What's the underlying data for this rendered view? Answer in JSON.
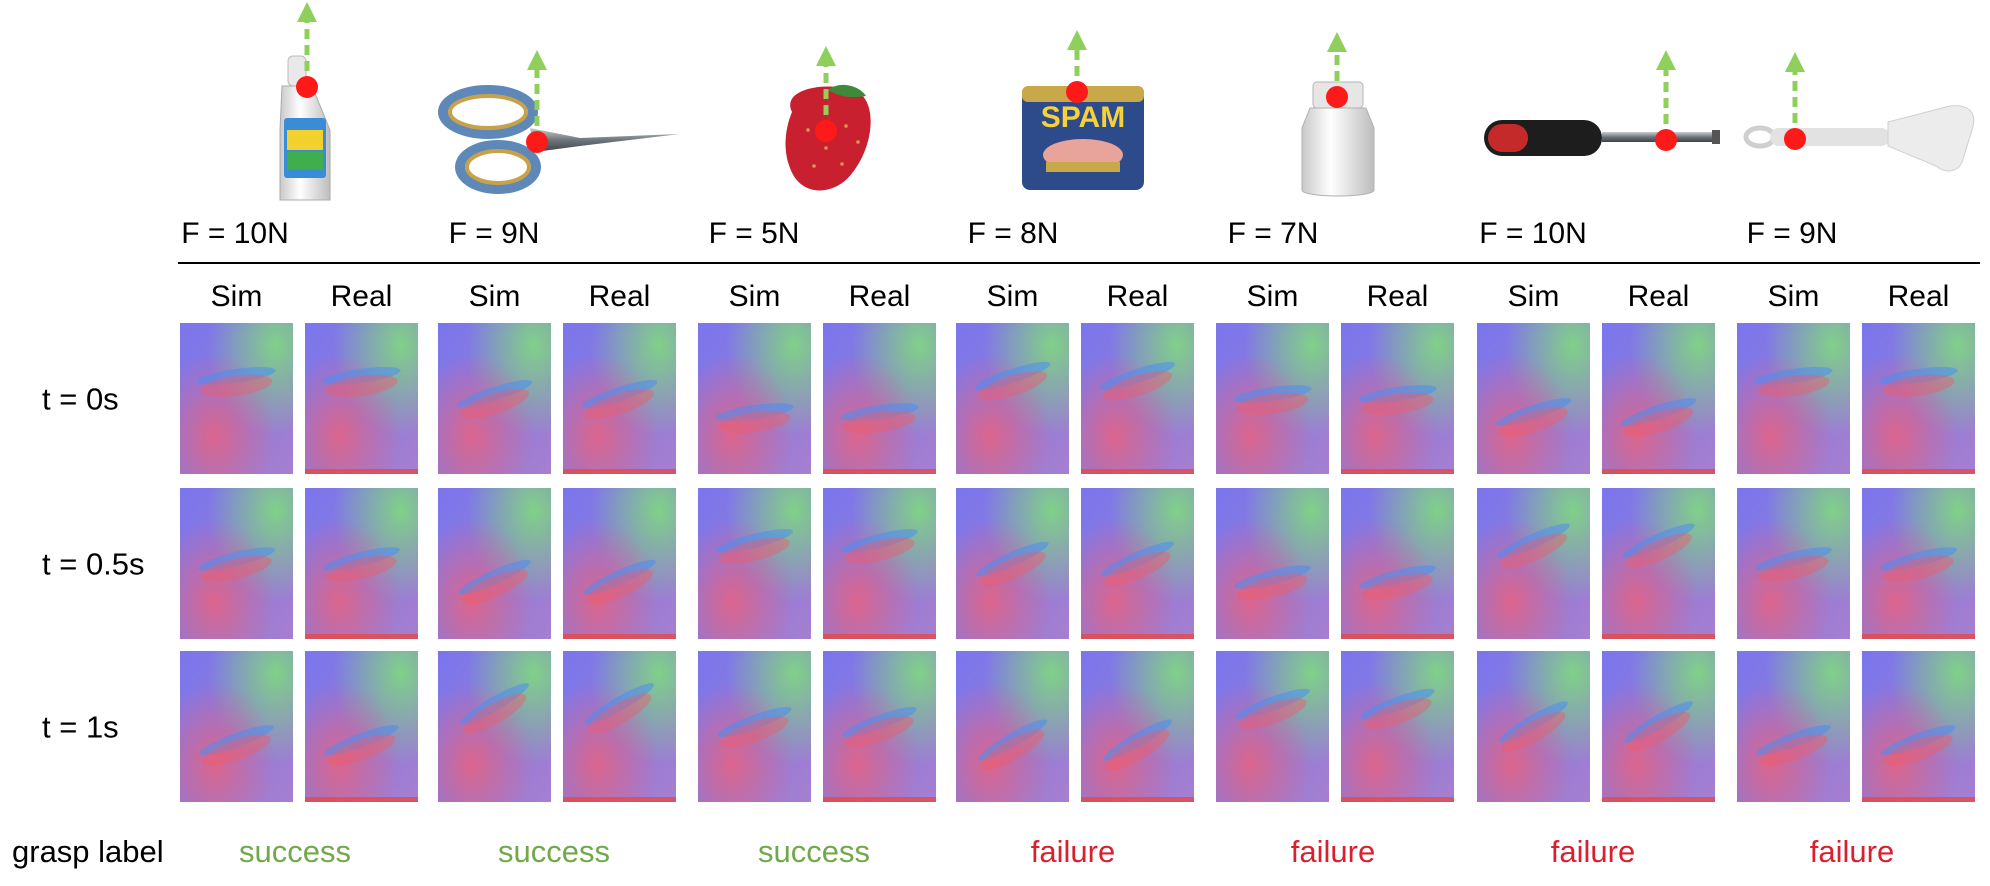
{
  "objects": [
    {
      "icon": "cleaner-bottle-icon",
      "force": "F = 10N",
      "label": "success"
    },
    {
      "icon": "scissors-icon",
      "force": "F = 9N",
      "label": "success"
    },
    {
      "icon": "strawberry-icon",
      "force": "F = 5N",
      "label": "success"
    },
    {
      "icon": "spam-can-icon",
      "force": "F = 8N",
      "label": "failure"
    },
    {
      "icon": "pill-bottle-icon",
      "force": "F = 7N",
      "label": "failure"
    },
    {
      "icon": "screwdriver-icon",
      "force": "F = 10N",
      "label": "failure"
    },
    {
      "icon": "spatula-icon",
      "force": "F = 9N",
      "label": "failure"
    }
  ],
  "col_headers": {
    "sim": "Sim",
    "real": "Real"
  },
  "time_labels": [
    "t = 0s",
    "t = 0.5s",
    "t = 1s"
  ],
  "row_label": "grasp label",
  "spam_text": "SPAM",
  "colors": {
    "success": "#72a84a",
    "failure": "#d9202e",
    "arrow": "#8fcf5b",
    "grasp_point": "#ff1a1a"
  }
}
